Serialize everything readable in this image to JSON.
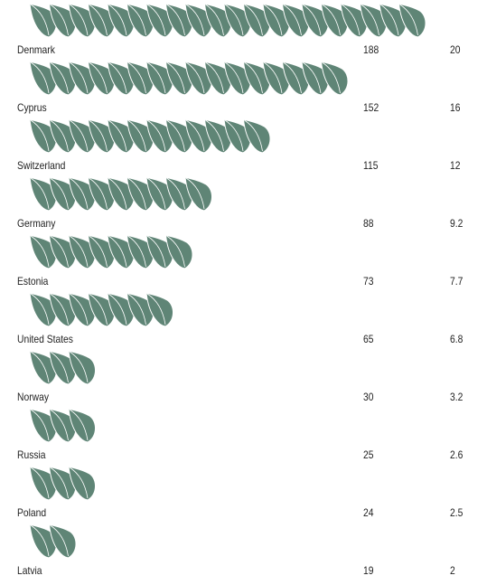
{
  "chart_data": {
    "type": "bar",
    "categories": [
      "Denmark",
      "Cyprus",
      "Switzerland",
      "Germany",
      "Estonia",
      "United States",
      "Norway",
      "Russia",
      "Poland",
      "Latvia"
    ],
    "series": [
      {
        "values": [
          188,
          152,
          115,
          88,
          73,
          65,
          30,
          25,
          24,
          19
        ]
      },
      {
        "values": [
          20,
          16,
          12,
          9.2,
          7.7,
          6.8,
          3.2,
          2.6,
          2.5,
          2
        ]
      }
    ],
    "leaf_color": "#5f8576"
  }
}
